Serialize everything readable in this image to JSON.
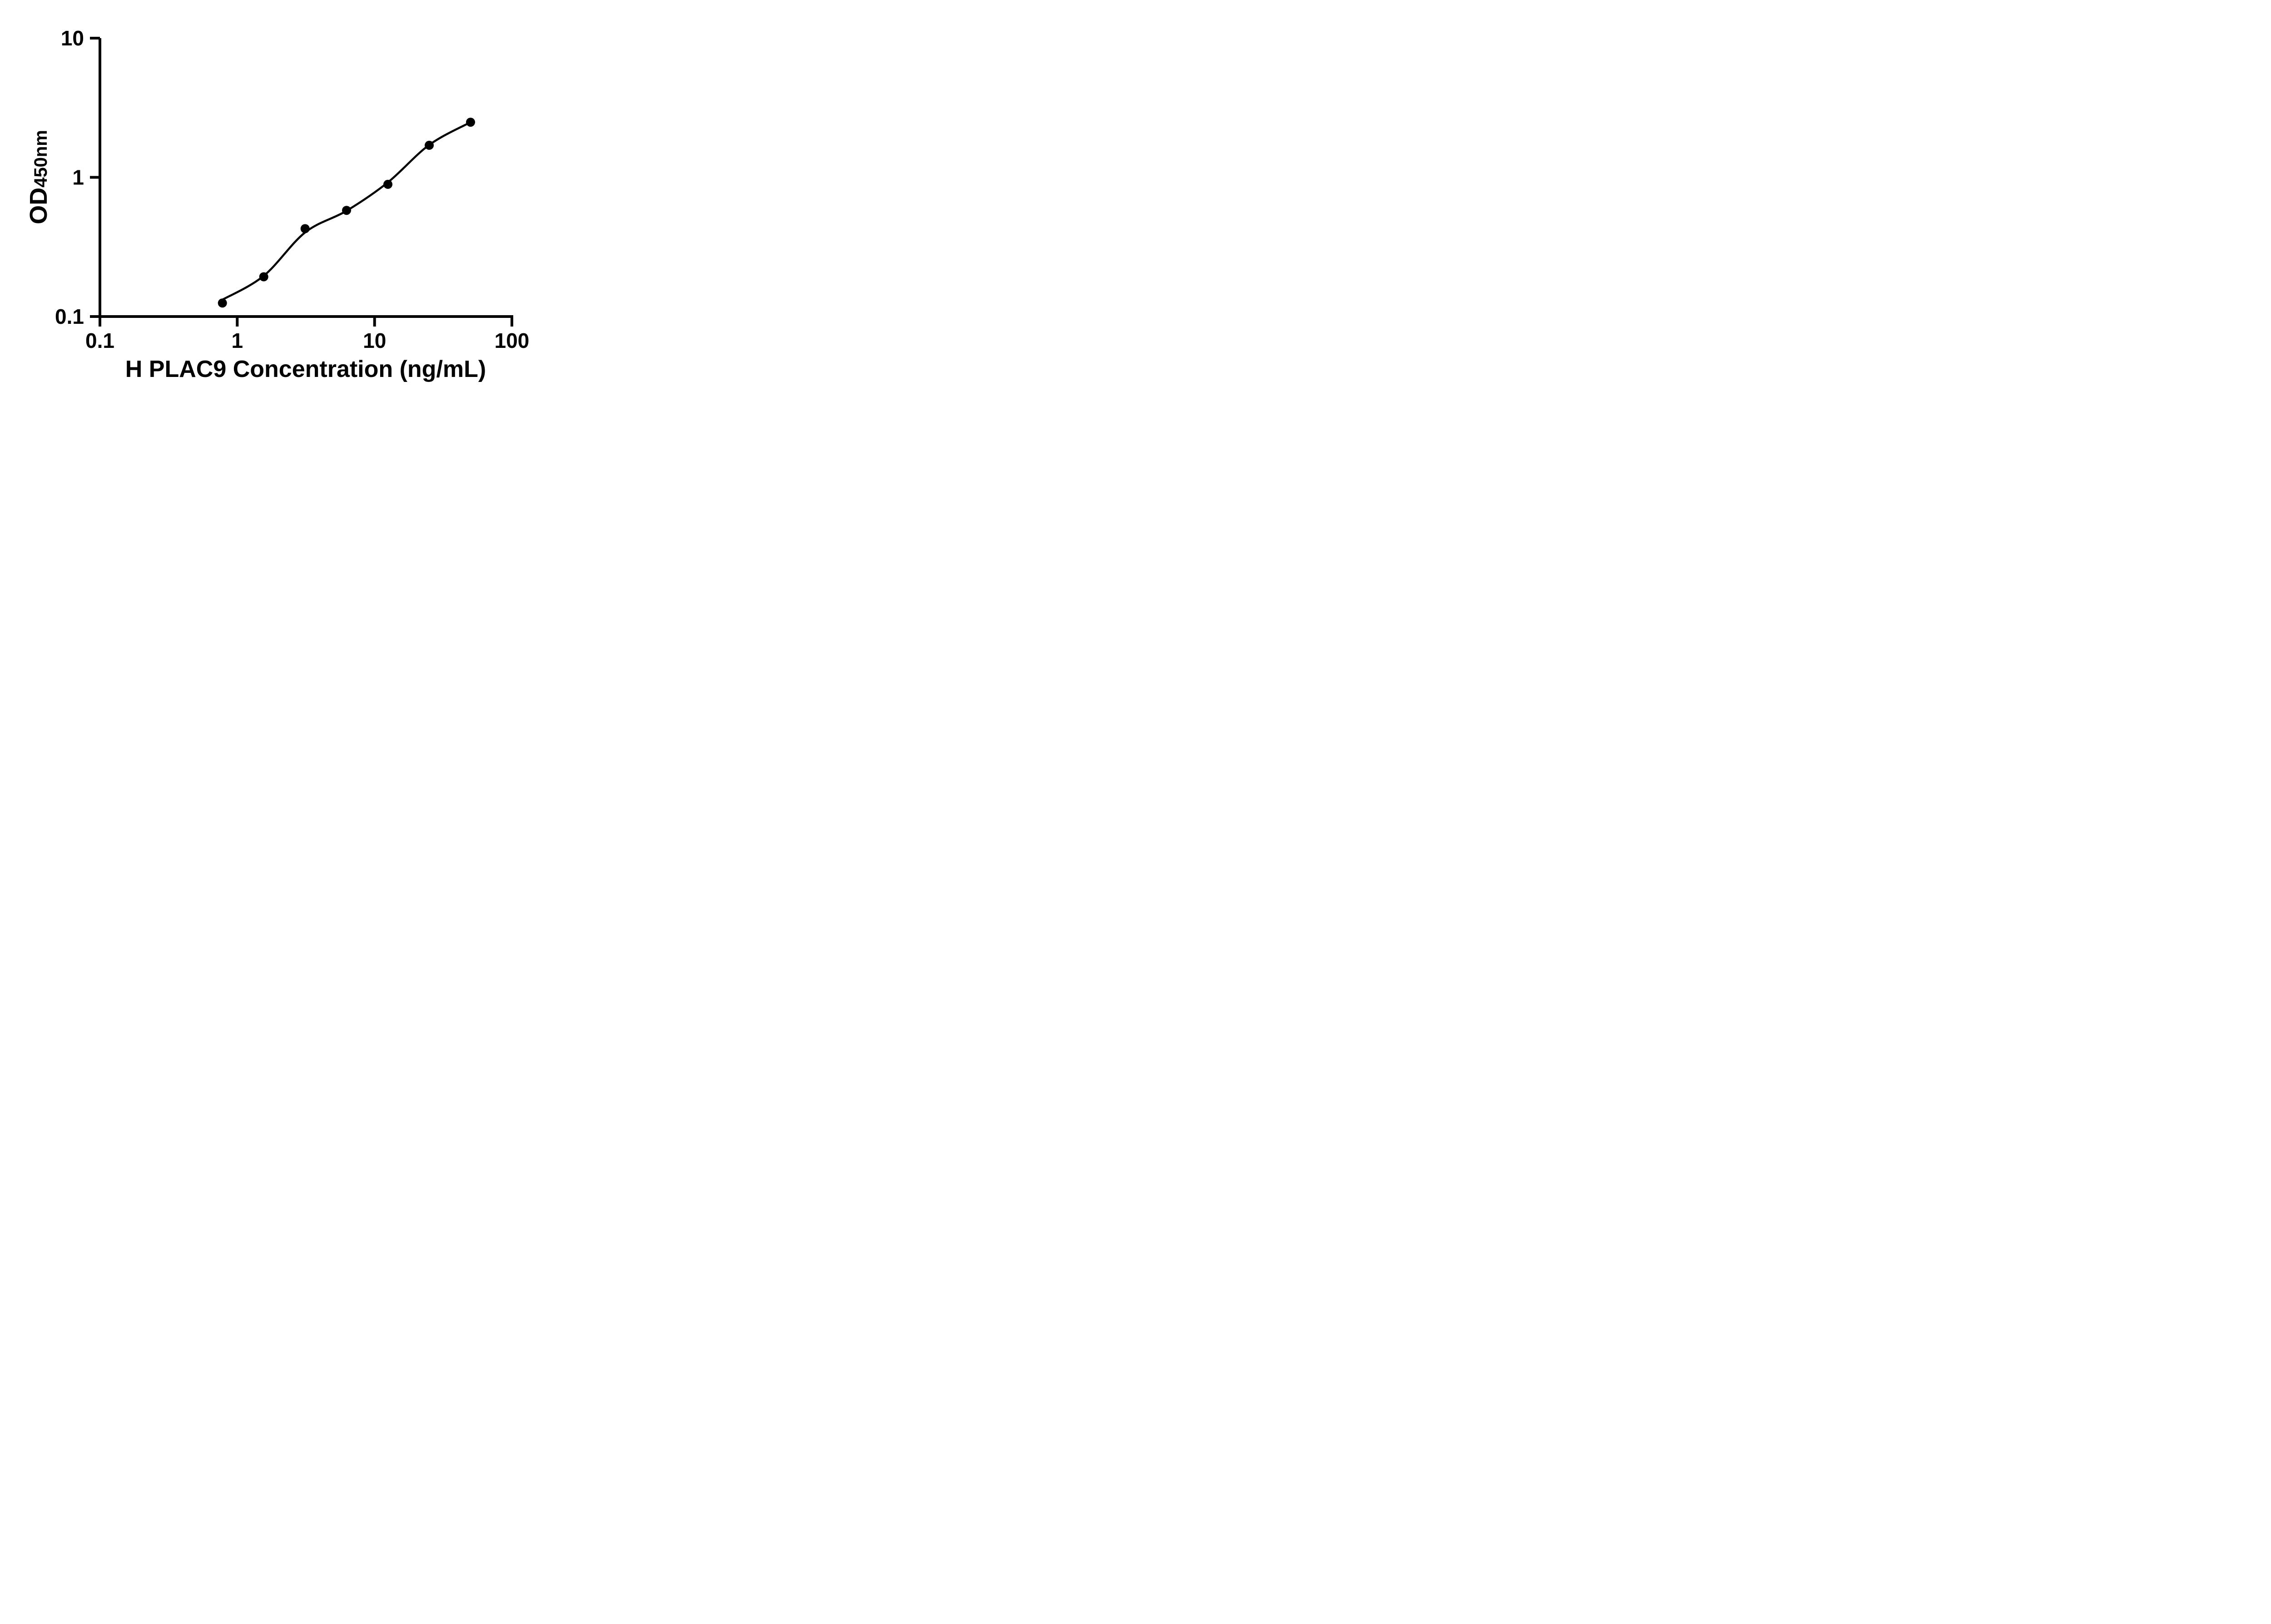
{
  "figure": {
    "background": "#ffffff",
    "foreground": "#000000"
  },
  "y_axis": {
    "title_main": "OD",
    "title_sub": "450nm",
    "scale": "log",
    "min": 0.1,
    "max": 10,
    "tick_labels": [
      "10",
      "1",
      "0.1"
    ],
    "tick_values": [
      10,
      1,
      0.1
    ]
  },
  "x_axis": {
    "title": "H PLAC9 Concentration (ng/mL)",
    "scale": "log",
    "min": 0.1,
    "max": 100,
    "tick_labels": [
      "0.1",
      "1",
      "10",
      "100"
    ],
    "tick_values": [
      0.1,
      1,
      10,
      100
    ]
  },
  "chart_data": {
    "type": "scatter",
    "title": "",
    "xlabel": "H PLAC9 Concentration (ng/mL)",
    "ylabel": "OD450nm",
    "x": [
      0.78,
      1.56,
      3.12,
      6.25,
      12.5,
      25,
      50
    ],
    "y": [
      0.125,
      0.193,
      0.428,
      0.579,
      0.891,
      1.7,
      2.49
    ],
    "fit_curve_y": [
      0.132,
      0.196,
      0.402,
      0.575,
      0.92,
      1.71,
      2.49
    ],
    "xlim": [
      0.1,
      100
    ],
    "ylim": [
      0.1,
      10
    ],
    "xscale": "log",
    "yscale": "log",
    "grid": false,
    "legend": false,
    "marker": "filled-circle",
    "marker_color": "#000000",
    "line_color": "#000000"
  }
}
